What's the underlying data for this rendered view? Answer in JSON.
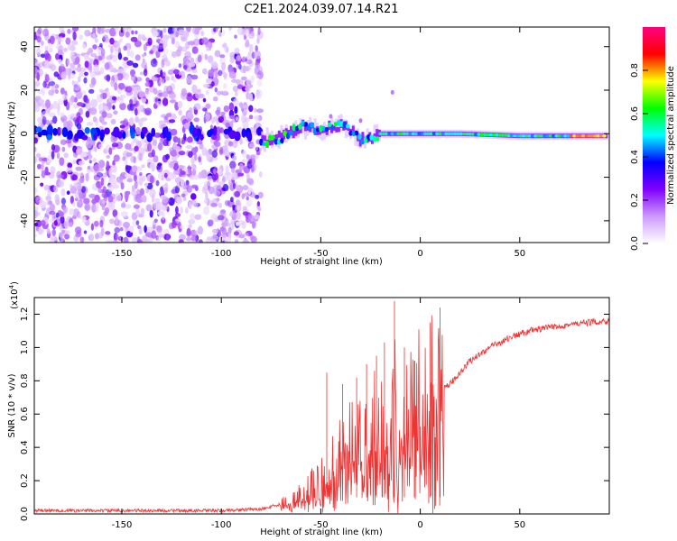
{
  "title": "C2E1.2024.039.07.14.R21",
  "chart_data": [
    {
      "type": "heatmap",
      "xlabel": "Height of straight line (km)",
      "ylabel": "Frequency (Hz)",
      "xlim": [
        -194,
        95
      ],
      "ylim": [
        -50,
        49
      ],
      "xticks": [
        "-150",
        "-100",
        "-50",
        "0",
        "50"
      ],
      "xtick_values": [
        -150,
        -100,
        -50,
        0,
        50
      ],
      "yticks": [
        "-40",
        "-20",
        "0",
        "20",
        "40"
      ],
      "ytick_values": [
        -40,
        -20,
        0,
        20,
        40
      ],
      "noise_region_km": [
        -194,
        -80
      ],
      "signal_track": [
        {
          "x": -80,
          "f": -3
        },
        {
          "x": -70,
          "f": -2
        },
        {
          "x": -60,
          "f": 3
        },
        {
          "x": -50,
          "f": 2
        },
        {
          "x": -40,
          "f": 4
        },
        {
          "x": -30,
          "f": -3
        },
        {
          "x": -20,
          "f": 0
        },
        {
          "x": 0,
          "f": 0
        },
        {
          "x": 20,
          "f": 0
        },
        {
          "x": 50,
          "f": -1
        },
        {
          "x": 80,
          "f": -1
        },
        {
          "x": 93,
          "f": -1
        }
      ],
      "colorbar": {
        "label": "Normalized spectral amplitude",
        "ticks": [
          "0.0",
          "0.2",
          "0.4",
          "0.6",
          "0.8"
        ],
        "tick_values": [
          0.0,
          0.2,
          0.4,
          0.6,
          0.8
        ],
        "range": [
          0,
          1
        ],
        "colors": [
          "#ffffff",
          "#cc99ff",
          "#8000ff",
          "#0000ff",
          "#00ffff",
          "#00ff00",
          "#ffff00",
          "#ff0000",
          "#ff0080"
        ]
      }
    },
    {
      "type": "line",
      "xlabel": "Height of straight line (km)",
      "ylabel": "SNR (10 * v/v)",
      "multiplier": "(x10",
      "multiplier_exp": "4",
      "multiplier_close": ")",
      "xlim": [
        -194,
        95
      ],
      "ylim": [
        0,
        1.3
      ],
      "xticks": [
        "-150",
        "-100",
        "-50",
        "0",
        "50"
      ],
      "xtick_values": [
        -150,
        -100,
        -50,
        0,
        50
      ],
      "yticks": [
        "0.0",
        "0.2",
        "0.4",
        "0.6",
        "0.8",
        "1.0",
        "1.2"
      ],
      "ytick_values": [
        0.0,
        0.2,
        0.4,
        0.6,
        0.8,
        1.0,
        1.2
      ],
      "series_color": "#ee3333",
      "envelope": [
        {
          "x": -194,
          "y": 0.02
        },
        {
          "x": -100,
          "y": 0.02
        },
        {
          "x": -80,
          "y": 0.03
        },
        {
          "x": -65,
          "y": 0.07
        },
        {
          "x": -55,
          "y": 0.15
        },
        {
          "x": -45,
          "y": 0.3
        },
        {
          "x": -35,
          "y": 0.4
        },
        {
          "x": -25,
          "y": 0.45
        },
        {
          "x": -15,
          "y": 0.55
        },
        {
          "x": -5,
          "y": 0.62
        },
        {
          "x": 5,
          "y": 0.68
        },
        {
          "x": 15,
          "y": 0.78
        },
        {
          "x": 25,
          "y": 0.92
        },
        {
          "x": 35,
          "y": 1.0
        },
        {
          "x": 45,
          "y": 1.06
        },
        {
          "x": 55,
          "y": 1.1
        },
        {
          "x": 70,
          "y": 1.13
        },
        {
          "x": 85,
          "y": 1.15
        },
        {
          "x": 95,
          "y": 1.16
        }
      ],
      "spikes": [
        {
          "x": -47,
          "y": 0.85
        },
        {
          "x": -39,
          "y": 0.78
        },
        {
          "x": -32,
          "y": 0.82
        },
        {
          "x": -27,
          "y": 0.9
        },
        {
          "x": -22,
          "y": 0.95
        },
        {
          "x": -18,
          "y": 1.03
        },
        {
          "x": -13,
          "y": 1.28
        },
        {
          "x": -8,
          "y": 1.0
        },
        {
          "x": -3,
          "y": 0.92
        },
        {
          "x": 5,
          "y": 1.15
        },
        {
          "x": 10,
          "y": 1.24
        }
      ]
    }
  ]
}
